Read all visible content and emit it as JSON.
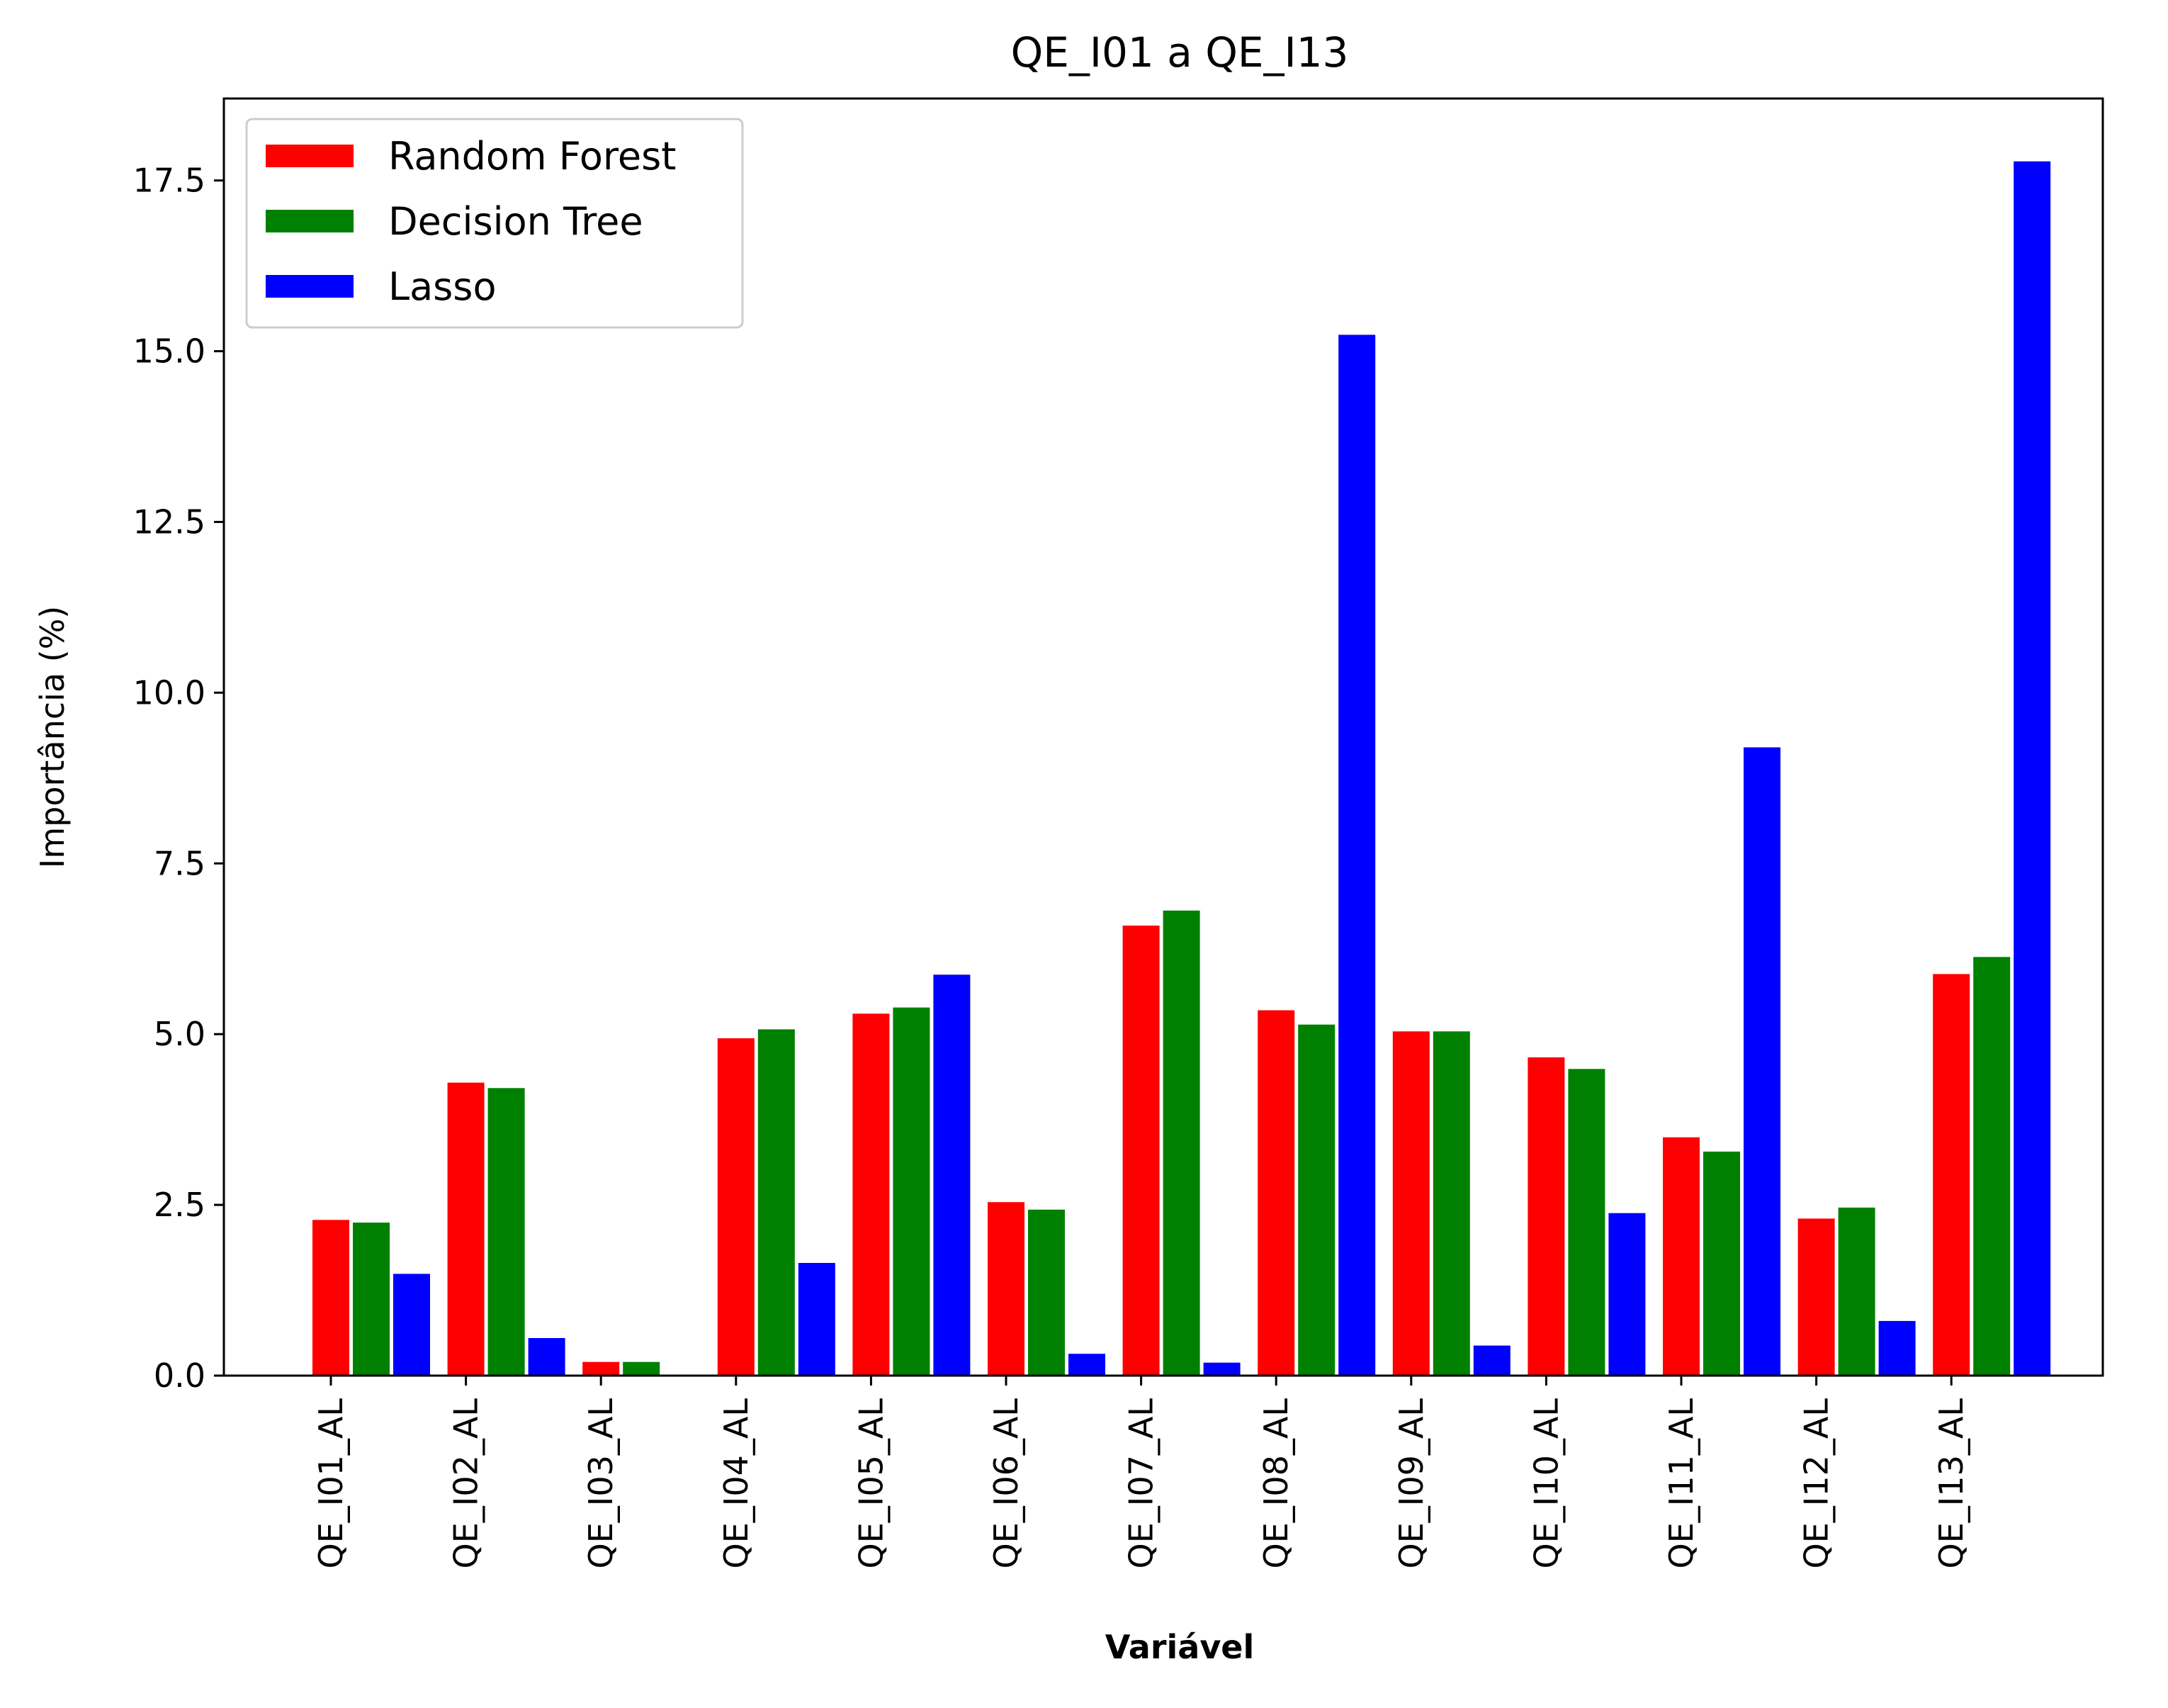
{
  "chart_data": {
    "type": "bar",
    "title": "QE_I01 a QE_I13",
    "xlabel": "Variável",
    "ylabel": "Importância (%)",
    "categories": [
      "QE_I01_AL",
      "QE_I02_AL",
      "QE_I03_AL",
      "QE_I04_AL",
      "QE_I05_AL",
      "QE_I06_AL",
      "QE_I07_AL",
      "QE_I08_AL",
      "QE_I09_AL",
      "QE_I10_AL",
      "QE_I11_AL",
      "QE_I12_AL",
      "QE_I13_AL"
    ],
    "ylim": [
      0,
      18.7
    ],
    "yticks": [
      0.0,
      2.5,
      5.0,
      7.5,
      10.0,
      12.5,
      15.0,
      17.5
    ],
    "ytick_labels": [
      "0.0",
      "2.5",
      "5.0",
      "7.5",
      "10.0",
      "12.5",
      "15.0",
      "17.5"
    ],
    "grid": false,
    "legend_position": "top-left",
    "series": [
      {
        "name": "Random Forest",
        "color": "#ff0000",
        "values": [
          2.28,
          4.29,
          0.2,
          4.94,
          5.3,
          2.54,
          6.59,
          5.35,
          5.04,
          4.66,
          3.49,
          2.3,
          5.88
        ]
      },
      {
        "name": "Decision Tree",
        "color": "#008000",
        "values": [
          2.24,
          4.21,
          0.2,
          5.07,
          5.39,
          2.43,
          6.81,
          5.14,
          5.04,
          4.49,
          3.28,
          2.46,
          6.13
        ]
      },
      {
        "name": "Lasso",
        "color": "#0000ff",
        "values": [
          1.49,
          0.55,
          0.0,
          1.65,
          5.87,
          0.32,
          0.19,
          15.24,
          0.44,
          2.38,
          9.2,
          0.8,
          17.78
        ]
      }
    ]
  }
}
